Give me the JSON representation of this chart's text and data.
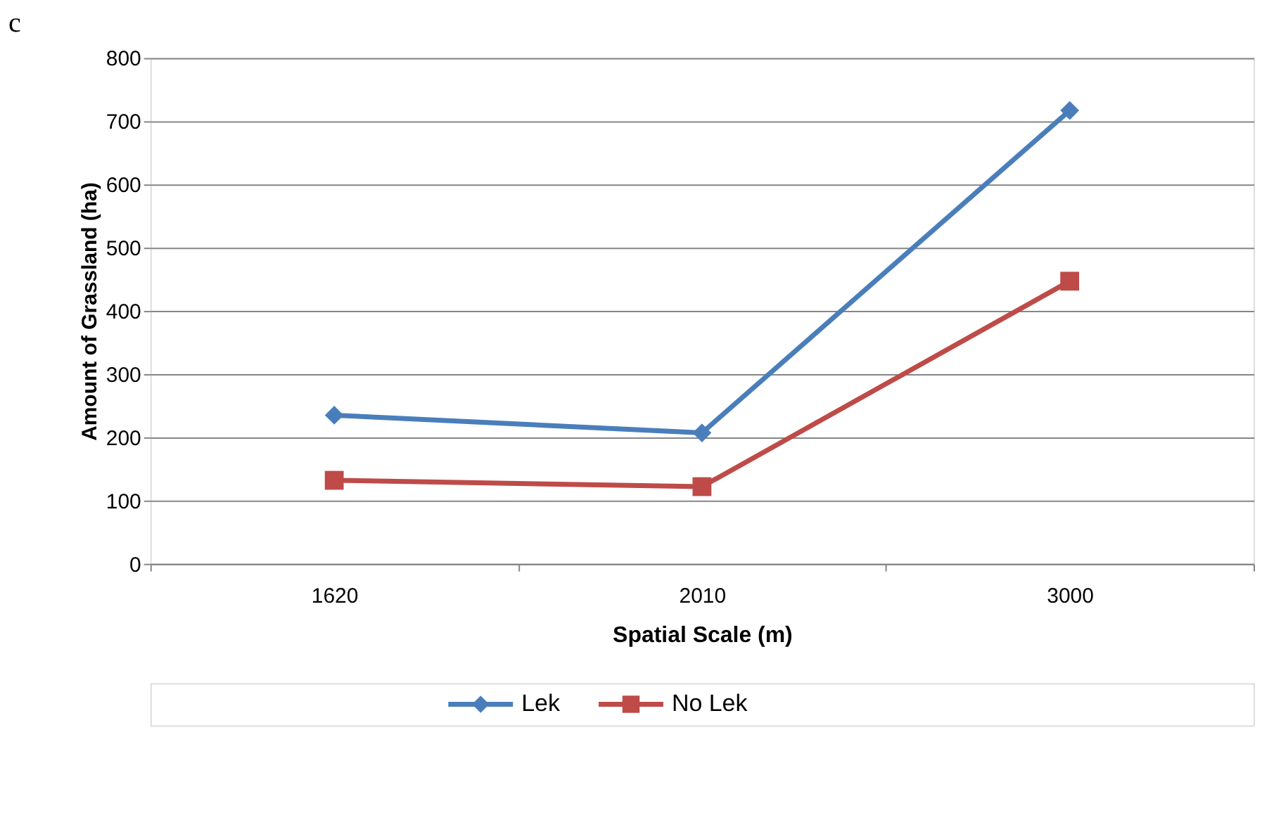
{
  "chart_data": {
    "type": "line",
    "title": "c",
    "xlabel": "Spatial Scale (m)",
    "ylabel": "Amount of Grassland (ha)",
    "categories": [
      "1620",
      "2010",
      "3000"
    ],
    "series": [
      {
        "name": "Lek",
        "color": "#4a7ebb",
        "marker": "diamond",
        "values": [
          235,
          207,
          717
        ]
      },
      {
        "name": "No Lek",
        "color": "#be4b48",
        "marker": "square",
        "values": [
          132,
          122,
          447
        ]
      }
    ],
    "ylim": [
      0,
      800
    ],
    "yticks": [
      0,
      100,
      200,
      300,
      400,
      500,
      600,
      700,
      800
    ],
    "grid": "y",
    "legend": "bottom",
    "line_style": "solid"
  }
}
